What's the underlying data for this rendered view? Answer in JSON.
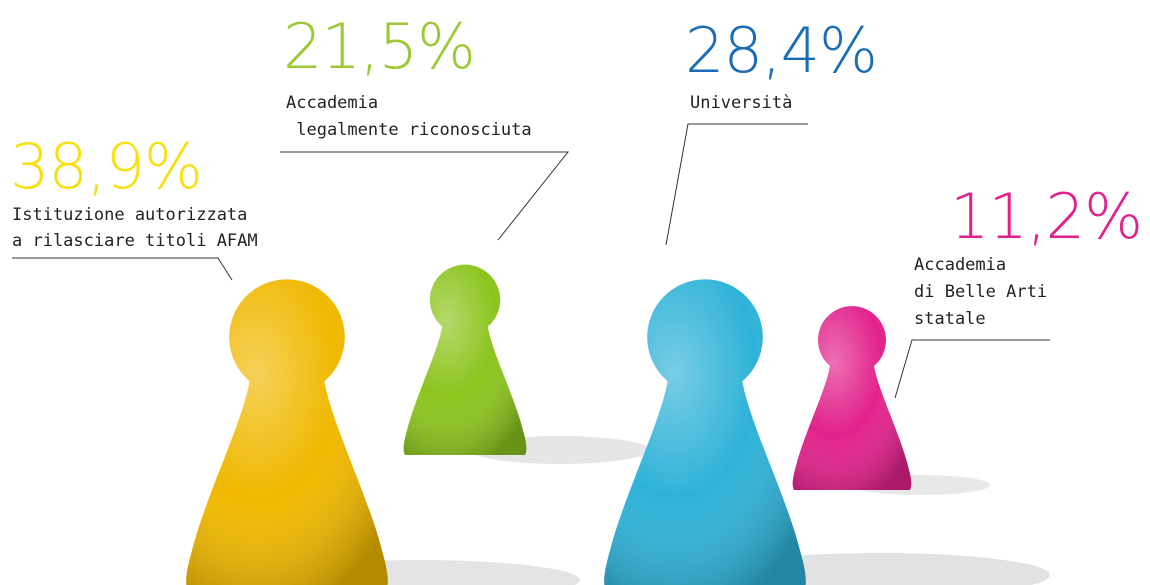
{
  "items": [
    {
      "percent": "38,9%",
      "label": [
        "Istituzione autorizzata",
        "a rilasciare titoli AFAM"
      ]
    },
    {
      "percent": "21,5%",
      "label": [
        "Accademia",
        " legalmente riconosciuta"
      ]
    },
    {
      "percent": "28,4%",
      "label": [
        "Università"
      ]
    },
    {
      "percent": "11,2%",
      "label": [
        "Accademia",
        "di Belle Arti",
        "statale"
      ]
    }
  ]
}
